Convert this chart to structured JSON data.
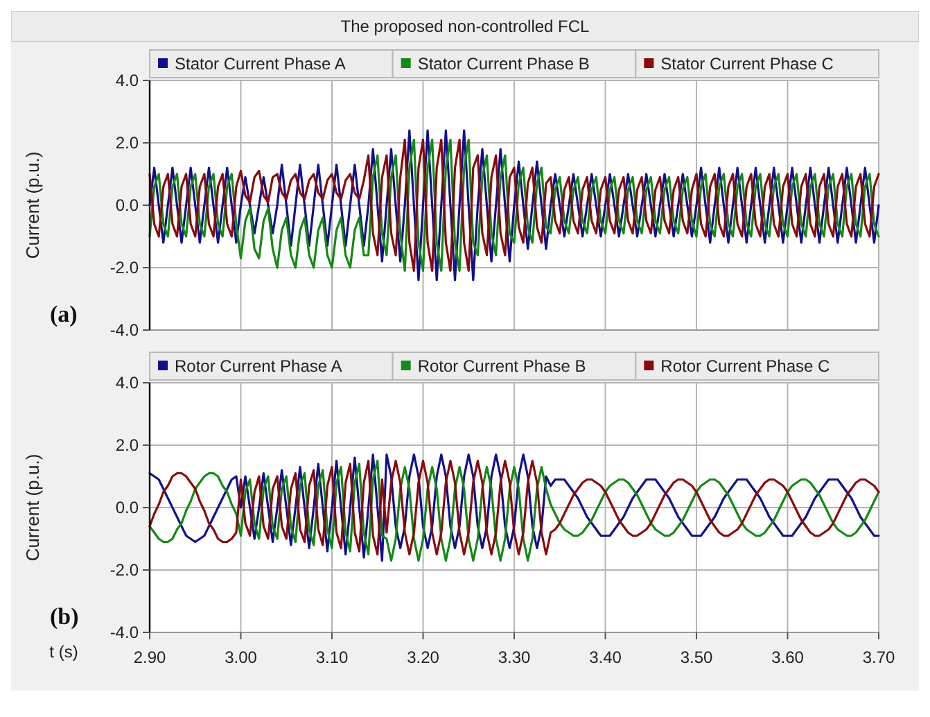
{
  "chart_data": [
    {
      "type": "line",
      "title": "The proposed non-controlled FCL",
      "ylabel": "Current (p.u.)",
      "annotations": [
        "(a)"
      ],
      "legend": "top",
      "grid": true,
      "tick_labels": "y",
      "xlim": [
        2.9,
        3.7
      ],
      "xticks": [
        2.9,
        3.0,
        3.1,
        3.2,
        3.3,
        3.4,
        3.5,
        3.6,
        3.7
      ],
      "ylim": [
        -4,
        4
      ],
      "yticks": [
        {
          "value": -4,
          "label": "-4.0"
        },
        {
          "value": -2,
          "label": "-2.0"
        },
        {
          "value": 0,
          "label": "0.0"
        },
        {
          "value": 2,
          "label": "2.0"
        },
        {
          "value": 4,
          "label": "4.0"
        }
      ],
      "x": [
        2.9,
        2.905,
        2.91,
        2.915,
        2.92,
        2.925,
        2.93,
        2.935,
        2.94,
        2.945,
        2.95,
        2.955,
        2.96,
        2.965,
        2.97,
        2.975,
        2.98,
        2.985,
        2.99,
        2.995,
        3.0,
        3.005,
        3.01,
        3.015,
        3.02,
        3.025,
        3.03,
        3.035,
        3.04,
        3.045,
        3.05,
        3.055,
        3.06,
        3.065,
        3.07,
        3.075,
        3.08,
        3.085,
        3.09,
        3.095,
        3.1,
        3.105,
        3.11,
        3.115,
        3.12,
        3.125,
        3.13,
        3.135,
        3.14,
        3.145,
        3.15,
        3.155,
        3.16,
        3.165,
        3.17,
        3.175,
        3.18,
        3.185,
        3.19,
        3.195,
        3.2,
        3.205,
        3.21,
        3.215,
        3.22,
        3.225,
        3.23,
        3.235,
        3.24,
        3.245,
        3.25,
        3.255,
        3.26,
        3.265,
        3.27,
        3.275,
        3.28,
        3.285,
        3.29,
        3.295,
        3.3,
        3.305,
        3.31,
        3.315,
        3.32,
        3.325,
        3.33,
        3.335,
        3.34,
        3.345,
        3.35,
        3.355,
        3.36,
        3.365,
        3.37,
        3.375,
        3.38,
        3.385,
        3.39,
        3.395,
        3.4,
        3.405,
        3.41,
        3.415,
        3.42,
        3.425,
        3.43,
        3.435,
        3.44,
        3.445,
        3.45,
        3.455,
        3.46,
        3.465,
        3.47,
        3.475,
        3.48,
        3.485,
        3.49,
        3.495,
        3.5,
        3.505,
        3.51,
        3.515,
        3.52,
        3.525,
        3.53,
        3.535,
        3.54,
        3.545,
        3.55,
        3.555,
        3.56,
        3.565,
        3.57,
        3.575,
        3.58,
        3.585,
        3.59,
        3.595,
        3.6,
        3.605,
        3.61,
        3.615,
        3.62,
        3.625,
        3.63,
        3.635,
        3.64,
        3.645,
        3.65,
        3.655,
        3.66,
        3.665,
        3.67,
        3.675,
        3.68,
        3.685,
        3.69,
        3.695,
        3.7
      ],
      "series": [
        {
          "name": "Stator Current Phase A",
          "color": "#10108f",
          "values": [
            0,
            1.2,
            0,
            -1.2,
            0,
            1.2,
            0,
            -1.2,
            0,
            1.2,
            0,
            -1.2,
            0,
            1.2,
            0,
            -1.2,
            0,
            1.2,
            0,
            -1.2,
            0,
            0.9,
            0,
            -0.9,
            0,
            0.9,
            0,
            -0.9,
            0,
            1.3,
            0,
            -1.3,
            0,
            1.3,
            0,
            -1.3,
            0,
            1.3,
            0,
            -1.3,
            0,
            1.3,
            0,
            -1.3,
            0,
            1.3,
            0,
            -1.3,
            0,
            1.8,
            0,
            -1.8,
            0,
            1.8,
            0,
            -1.8,
            0,
            2.4,
            0,
            -2.4,
            0,
            2.4,
            0,
            -2.4,
            0,
            2.4,
            0,
            -2.4,
            0,
            2.4,
            0,
            -2.4,
            0,
            1.8,
            0,
            -1.8,
            0,
            1.8,
            0,
            -1.8,
            0,
            1.4,
            0,
            -1.4,
            0,
            1.4,
            0,
            -1.4,
            0,
            1.0,
            0,
            -1.0,
            0,
            1.0,
            0,
            -1.0,
            0,
            1.0,
            0,
            -1.0,
            0,
            1.0,
            0,
            -1.0,
            0,
            1.0,
            0,
            -1.0,
            0,
            1.0,
            0,
            -1.0,
            0,
            1.0,
            0,
            -1.0,
            0,
            1.0,
            0,
            -1.0,
            0,
            1.2,
            0,
            -1.2,
            0,
            1.2,
            0,
            -1.2,
            0,
            1.2,
            0,
            -1.2,
            0,
            1.2,
            0,
            -1.2,
            0,
            1.2,
            0,
            -1.2,
            0,
            1.2,
            0,
            -1.2,
            0,
            1.2,
            0,
            -1.2,
            0,
            1.2,
            0,
            -1.2,
            0,
            1.2,
            0,
            -1.2,
            0,
            1.2,
            0,
            -1.2,
            0
          ]
        },
        {
          "name": "Stator Current Phase B",
          "color": "#138a13",
          "values": [
            -1.0,
            0.6,
            1.0,
            -0.6,
            -1.0,
            0.6,
            1.0,
            -0.6,
            -1.0,
            0.6,
            1.0,
            -0.6,
            -1.0,
            0.6,
            1.0,
            -0.6,
            -1.0,
            0.6,
            1.0,
            -0.6,
            -1.7,
            -0.5,
            -0.1,
            -1.4,
            -1.7,
            -0.5,
            -0.1,
            -1.4,
            -2.0,
            -0.8,
            -0.4,
            -1.6,
            -2.0,
            -0.8,
            -0.4,
            -1.6,
            -2.0,
            -0.8,
            -0.4,
            -1.6,
            -2.0,
            -0.8,
            -0.4,
            -1.6,
            -2.0,
            -0.8,
            -0.4,
            -1.6,
            -1.6,
            0.9,
            1.6,
            -0.9,
            -1.6,
            0.9,
            1.6,
            -0.9,
            -2.1,
            1.2,
            2.1,
            -1.2,
            -2.1,
            1.2,
            2.1,
            -1.2,
            -2.1,
            1.2,
            2.1,
            -1.2,
            -2.1,
            1.2,
            2.1,
            -1.2,
            -1.6,
            0.9,
            1.6,
            -0.9,
            -1.6,
            0.9,
            1.6,
            -0.9,
            -1.2,
            0.7,
            1.2,
            -0.7,
            -1.2,
            0.7,
            1.2,
            -0.7,
            -0.9,
            0.5,
            0.9,
            -0.5,
            -0.9,
            0.5,
            0.9,
            -0.5,
            -0.9,
            0.5,
            0.9,
            -0.5,
            -0.9,
            0.5,
            0.9,
            -0.5,
            -0.9,
            0.5,
            0.9,
            -0.5,
            -0.9,
            0.5,
            0.9,
            -0.5,
            -0.9,
            0.5,
            0.9,
            -0.5,
            -0.9,
            0.5,
            0.9,
            -0.5,
            -1.0,
            0.6,
            1.0,
            -0.6,
            -1.0,
            0.6,
            1.0,
            -0.6,
            -1.0,
            0.6,
            1.0,
            -0.6,
            -1.0,
            0.6,
            1.0,
            -0.6,
            -1.0,
            0.6,
            1.0,
            -0.6,
            -1.0,
            0.6,
            1.0,
            -0.6,
            -1.0,
            0.6,
            1.0,
            -0.6,
            -1.0,
            0.6,
            1.0,
            -0.6,
            -1.0,
            0.6,
            1.0,
            -0.6,
            -1.0,
            0.6,
            1.0,
            -0.6,
            -1.0
          ]
        },
        {
          "name": "Stator Current Phase C",
          "color": "#8b0a0a",
          "values": [
            1.0,
            -0.6,
            -1.0,
            0.6,
            1.0,
            -0.6,
            -1.0,
            0.6,
            1.0,
            -0.6,
            -1.0,
            0.6,
            1.0,
            -0.6,
            -1.0,
            0.6,
            1.0,
            -0.6,
            -1.0,
            0.6,
            1.1,
            0.3,
            0.1,
            0.9,
            1.1,
            0.3,
            0.1,
            0.9,
            1.0,
            0.4,
            0.2,
            0.8,
            1.0,
            0.4,
            0.2,
            0.8,
            1.0,
            0.4,
            0.2,
            0.8,
            1.0,
            0.4,
            0.2,
            0.8,
            1.0,
            0.4,
            0.2,
            0.8,
            1.6,
            -0.9,
            -1.6,
            0.9,
            1.6,
            -0.9,
            -1.6,
            0.9,
            2.1,
            -1.2,
            -2.1,
            1.2,
            2.1,
            -1.2,
            -2.1,
            1.2,
            2.1,
            -1.2,
            -2.1,
            1.2,
            2.1,
            -1.2,
            -2.1,
            1.2,
            1.6,
            -0.9,
            -1.6,
            0.9,
            1.6,
            -0.9,
            -1.6,
            0.9,
            1.2,
            -0.7,
            -1.2,
            0.7,
            1.2,
            -0.7,
            -1.2,
            0.7,
            0.9,
            -0.5,
            -0.9,
            0.5,
            0.9,
            -0.5,
            -0.9,
            0.5,
            0.9,
            -0.5,
            -0.9,
            0.5,
            0.9,
            -0.5,
            -0.9,
            0.5,
            0.9,
            -0.5,
            -0.9,
            0.5,
            0.9,
            -0.5,
            -0.9,
            0.5,
            0.9,
            -0.5,
            -0.9,
            0.5,
            0.9,
            -0.5,
            -0.9,
            0.5,
            1.0,
            -0.6,
            -1.0,
            0.6,
            1.0,
            -0.6,
            -1.0,
            0.6,
            1.0,
            -0.6,
            -1.0,
            0.6,
            1.0,
            -0.6,
            -1.0,
            0.6,
            1.0,
            -0.6,
            -1.0,
            0.6,
            1.0,
            -0.6,
            -1.0,
            0.6,
            1.0,
            -0.6,
            -1.0,
            0.6,
            1.0,
            -0.6,
            -1.0,
            0.6,
            1.0,
            -0.6,
            -1.0,
            0.6,
            1.0,
            -0.6,
            -1.0,
            0.6,
            1.0
          ]
        }
      ]
    },
    {
      "type": "line",
      "xlabel": "t (s)",
      "ylabel": "Current (p.u.)",
      "annotations": [
        "(b)"
      ],
      "legend": "top",
      "grid": true,
      "xlim": [
        2.9,
        3.7
      ],
      "xticks": [
        {
          "value": 2.9,
          "label": "2.90"
        },
        {
          "value": 3.0,
          "label": "3.00"
        },
        {
          "value": 3.1,
          "label": "3.10"
        },
        {
          "value": 3.2,
          "label": "3.20"
        },
        {
          "value": 3.3,
          "label": "3.30"
        },
        {
          "value": 3.4,
          "label": "3.40"
        },
        {
          "value": 3.5,
          "label": "3.50"
        },
        {
          "value": 3.6,
          "label": "3.60"
        },
        {
          "value": 3.7,
          "label": "3.70"
        }
      ],
      "ylim": [
        -4,
        4
      ],
      "yticks": [
        {
          "value": -4,
          "label": "-4.0"
        },
        {
          "value": -2,
          "label": "-2.0"
        },
        {
          "value": 0,
          "label": "0.0"
        },
        {
          "value": 2,
          "label": "2.0"
        },
        {
          "value": 4,
          "label": "4.0"
        }
      ],
      "x": [
        2.9,
        2.905,
        2.91,
        2.915,
        2.92,
        2.925,
        2.93,
        2.935,
        2.94,
        2.945,
        2.95,
        2.955,
        2.96,
        2.965,
        2.97,
        2.975,
        2.98,
        2.985,
        2.99,
        2.995,
        3.0,
        3.005,
        3.01,
        3.015,
        3.02,
        3.025,
        3.03,
        3.035,
        3.04,
        3.045,
        3.05,
        3.055,
        3.06,
        3.065,
        3.07,
        3.075,
        3.08,
        3.085,
        3.09,
        3.095,
        3.1,
        3.105,
        3.11,
        3.115,
        3.12,
        3.125,
        3.13,
        3.135,
        3.14,
        3.145,
        3.15,
        3.155,
        3.16,
        3.165,
        3.17,
        3.175,
        3.18,
        3.185,
        3.19,
        3.195,
        3.2,
        3.205,
        3.21,
        3.215,
        3.22,
        3.225,
        3.23,
        3.235,
        3.24,
        3.245,
        3.25,
        3.255,
        3.26,
        3.265,
        3.27,
        3.275,
        3.28,
        3.285,
        3.29,
        3.295,
        3.3,
        3.305,
        3.31,
        3.315,
        3.32,
        3.325,
        3.33,
        3.335,
        3.34,
        3.345,
        3.35,
        3.355,
        3.36,
        3.365,
        3.37,
        3.375,
        3.38,
        3.385,
        3.39,
        3.395,
        3.4,
        3.405,
        3.41,
        3.415,
        3.42,
        3.425,
        3.43,
        3.435,
        3.44,
        3.445,
        3.45,
        3.455,
        3.46,
        3.465,
        3.47,
        3.475,
        3.48,
        3.485,
        3.49,
        3.495,
        3.5,
        3.505,
        3.51,
        3.515,
        3.52,
        3.525,
        3.53,
        3.535,
        3.54,
        3.545,
        3.55,
        3.555,
        3.56,
        3.565,
        3.57,
        3.575,
        3.58,
        3.585,
        3.59,
        3.595,
        3.6,
        3.605,
        3.61,
        3.615,
        3.62,
        3.625,
        3.63,
        3.635,
        3.64,
        3.645,
        3.65,
        3.655,
        3.66,
        3.665,
        3.67,
        3.675,
        3.68,
        3.685,
        3.69,
        3.695,
        3.7
      ],
      "series": [
        {
          "name": "Rotor Current Phase A",
          "color": "#10108f",
          "values": [
            1.1,
            1.0,
            0.9,
            0.6,
            0.3,
            0,
            -0.3,
            -0.6,
            -0.9,
            -1.0,
            -1.1,
            -1.0,
            -0.9,
            -0.6,
            -0.3,
            0,
            0.3,
            0.6,
            0.9,
            1.0,
            0,
            1.0,
            0,
            -1.0,
            0,
            1.1,
            0,
            -1.1,
            0,
            1.2,
            0,
            -1.2,
            0,
            1.3,
            0,
            -1.3,
            0,
            1.4,
            0,
            -1.4,
            0,
            1.5,
            0,
            -1.5,
            0,
            1.6,
            0,
            -1.6,
            0,
            1.7,
            0,
            -1.7,
            1.7,
            1.0,
            -0.6,
            -1.3,
            -0.6,
            1.0,
            1.7,
            1.0,
            -0.6,
            -1.3,
            -0.6,
            1.0,
            1.7,
            1.0,
            -0.6,
            -1.3,
            -0.6,
            1.0,
            1.7,
            1.0,
            -0.6,
            -1.3,
            -0.6,
            1.0,
            1.7,
            1.0,
            -0.6,
            -1.3,
            -0.6,
            1.0,
            1.7,
            1.0,
            -0.6,
            -1.3,
            -0.6,
            1.0,
            0.7,
            0.9,
            0.9,
            0.9,
            0.7,
            0.5,
            0.3,
            0,
            -0.3,
            -0.5,
            -0.7,
            -0.9,
            -0.9,
            -0.9,
            -0.7,
            -0.5,
            -0.3,
            0,
            0.3,
            0.5,
            0.7,
            0.9,
            0.9,
            0.9,
            0.7,
            0.5,
            0.3,
            0,
            -0.3,
            -0.5,
            -0.7,
            -0.9,
            -0.9,
            -0.9,
            -0.7,
            -0.5,
            -0.3,
            0,
            0.3,
            0.5,
            0.7,
            0.9,
            0.9,
            0.9,
            0.7,
            0.5,
            0.3,
            0,
            -0.3,
            -0.5,
            -0.7,
            -0.9,
            -0.9,
            -0.9,
            -0.7,
            -0.5,
            -0.3,
            0,
            0.3,
            0.5,
            0.7,
            0.9,
            0.9,
            0.9,
            0.7,
            0.5,
            0.3,
            0,
            -0.3,
            -0.5,
            -0.7,
            -0.9,
            -0.9
          ]
        },
        {
          "name": "Rotor Current Phase B",
          "color": "#138a13",
          "values": [
            -0.6,
            -0.8,
            -1.0,
            -1.1,
            -1.1,
            -1.0,
            -0.7,
            -0.5,
            -0.1,
            0.2,
            0.6,
            0.8,
            1.0,
            1.1,
            1.1,
            1.0,
            0.7,
            0.5,
            0.1,
            -0.2,
            -0.9,
            0.5,
            0.9,
            -0.5,
            -1.0,
            0.6,
            1.0,
            -0.6,
            -1.0,
            0.6,
            1.0,
            -0.6,
            -1.1,
            0.7,
            1.1,
            -0.7,
            -1.2,
            0.7,
            1.2,
            -0.7,
            -1.3,
            0.8,
            1.3,
            -0.8,
            -1.4,
            0.8,
            1.4,
            -0.8,
            -1.5,
            0.9,
            1.5,
            -0.9,
            -1.0,
            -1.7,
            -1.0,
            0.6,
            1.3,
            0.6,
            -1.0,
            -1.7,
            -1.0,
            0.6,
            1.3,
            0.6,
            -1.0,
            -1.7,
            -1.0,
            0.6,
            1.3,
            0.6,
            -1.0,
            -1.7,
            -1.0,
            0.6,
            1.3,
            0.6,
            -1.0,
            -1.7,
            -1.0,
            0.6,
            1.3,
            0.6,
            -1.0,
            -1.7,
            -1.0,
            0.6,
            1.3,
            0.6,
            0.1,
            -0.2,
            -0.5,
            -0.7,
            -0.8,
            -0.9,
            -0.9,
            -0.8,
            -0.6,
            -0.4,
            -0.1,
            0.2,
            0.5,
            0.7,
            0.8,
            0.9,
            0.9,
            0.8,
            0.6,
            0.4,
            0.1,
            -0.2,
            -0.5,
            -0.7,
            -0.8,
            -0.9,
            -0.9,
            -0.8,
            -0.6,
            -0.4,
            -0.1,
            0.2,
            0.5,
            0.7,
            0.8,
            0.9,
            0.9,
            0.8,
            0.6,
            0.4,
            0.1,
            -0.2,
            -0.5,
            -0.7,
            -0.8,
            -0.9,
            -0.9,
            -0.8,
            -0.6,
            -0.4,
            -0.1,
            0.2,
            0.5,
            0.7,
            0.8,
            0.9,
            0.9,
            0.8,
            0.6,
            0.4,
            0.1,
            -0.2,
            -0.5,
            -0.7,
            -0.8,
            -0.9,
            -0.9,
            -0.8,
            -0.6,
            -0.4,
            -0.1,
            0.2,
            0.5
          ]
        },
        {
          "name": "Rotor Current Phase C",
          "color": "#8b0a0a",
          "values": [
            -0.6,
            -0.2,
            0.1,
            0.5,
            0.7,
            1.0,
            1.1,
            1.1,
            1.0,
            0.8,
            0.6,
            0.2,
            -0.1,
            -0.5,
            -0.7,
            -1.0,
            -1.1,
            -1.1,
            -1.0,
            -0.8,
            0.9,
            -0.5,
            -0.9,
            0.5,
            1.0,
            -0.6,
            -1.0,
            0.6,
            1.0,
            -0.6,
            -1.0,
            0.6,
            1.1,
            -0.7,
            -1.1,
            0.7,
            1.2,
            -0.7,
            -1.2,
            0.7,
            1.3,
            -0.8,
            -1.3,
            0.8,
            1.4,
            -0.8,
            -1.4,
            0.8,
            1.5,
            -0.9,
            -1.5,
            0.9,
            -0.8,
            0.8,
            1.5,
            0.8,
            -0.8,
            -1.5,
            -0.8,
            0.8,
            1.5,
            0.8,
            -0.8,
            -1.5,
            -0.8,
            0.8,
            1.5,
            0.8,
            -0.8,
            -1.5,
            -0.8,
            0.8,
            1.5,
            0.8,
            -0.8,
            -1.5,
            -0.8,
            0.8,
            1.5,
            0.8,
            -0.8,
            -1.5,
            -0.8,
            0.8,
            1.5,
            0.8,
            -0.8,
            -1.5,
            -0.8,
            -0.7,
            -0.5,
            -0.2,
            0.1,
            0.4,
            0.6,
            0.8,
            0.9,
            0.9,
            0.8,
            0.7,
            0.5,
            0.2,
            -0.1,
            -0.4,
            -0.6,
            -0.8,
            -0.9,
            -0.9,
            -0.8,
            -0.7,
            -0.5,
            -0.2,
            0.1,
            0.4,
            0.6,
            0.8,
            0.9,
            0.9,
            0.8,
            0.7,
            0.5,
            0.2,
            -0.1,
            -0.4,
            -0.6,
            -0.8,
            -0.9,
            -0.9,
            -0.8,
            -0.7,
            -0.5,
            -0.2,
            0.1,
            0.4,
            0.6,
            0.8,
            0.9,
            0.9,
            0.8,
            0.7,
            0.5,
            0.2,
            -0.1,
            -0.4,
            -0.6,
            -0.8,
            -0.9,
            -0.9,
            -0.8,
            -0.7,
            -0.5,
            -0.2,
            0.1,
            0.4,
            0.6,
            0.8,
            0.9,
            0.9,
            0.8,
            0.7,
            0.5
          ]
        }
      ]
    }
  ]
}
